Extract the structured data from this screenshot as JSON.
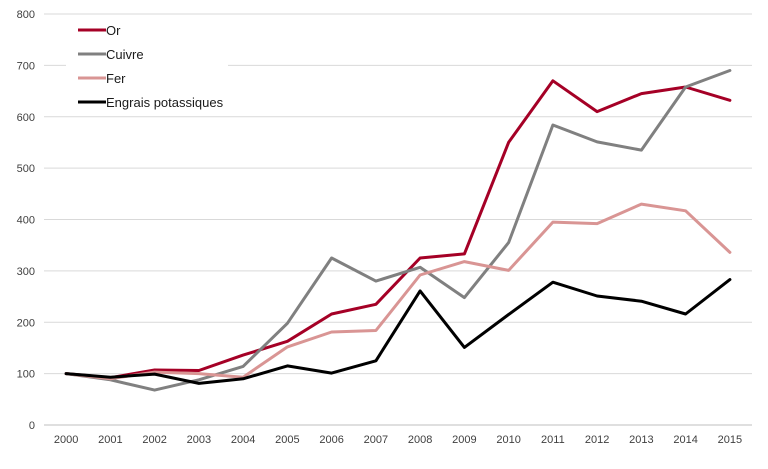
{
  "chart_data": {
    "type": "line",
    "title": "",
    "xlabel": "",
    "ylabel": "",
    "x": [
      "2000",
      "2001",
      "2002",
      "2003",
      "2004",
      "2005",
      "2006",
      "2007",
      "2008",
      "2009",
      "2010",
      "2011",
      "2012",
      "2013",
      "2014",
      "2015"
    ],
    "ylim": [
      0,
      800
    ],
    "yticks": [
      0,
      100,
      200,
      300,
      400,
      500,
      600,
      700,
      800
    ],
    "grid": "horizontal",
    "legend_position": "top-left",
    "series": [
      {
        "name": "Or",
        "color": "#A50026",
        "values": [
          100,
          92,
          107,
          106,
          136,
          163,
          216,
          235,
          325,
          333,
          550,
          670,
          610,
          645,
          658,
          632
        ]
      },
      {
        "name": "Cuivre",
        "color": "#808080",
        "values": [
          100,
          88,
          68,
          88,
          114,
          198,
          325,
          280,
          307,
          248,
          355,
          584,
          551,
          535,
          658,
          690
        ]
      },
      {
        "name": "Fer",
        "color": "#D99594",
        "values": [
          100,
          90,
          103,
          100,
          93,
          152,
          181,
          184,
          292,
          318,
          301,
          395,
          392,
          430,
          417,
          336
        ]
      },
      {
        "name": "Engrais potassiques",
        "color": "#000000",
        "values": [
          100,
          93,
          99,
          81,
          90,
          115,
          101,
          125,
          261,
          151,
          215,
          278,
          251,
          241,
          216,
          283
        ]
      }
    ]
  }
}
